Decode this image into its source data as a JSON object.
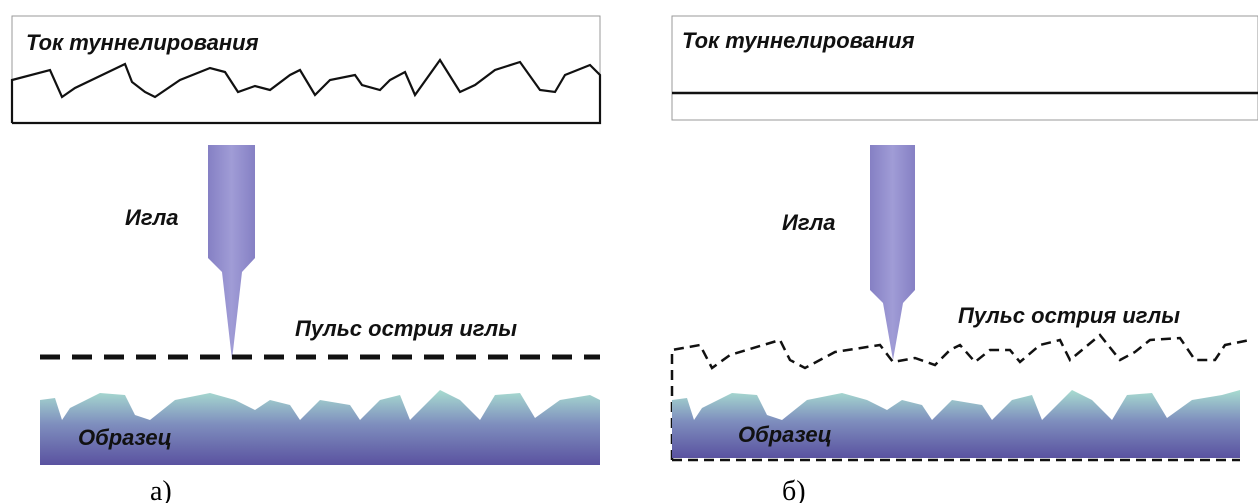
{
  "panels": [
    {
      "current_label": "Ток туннелирования",
      "needle_label": "Игла",
      "tip_pulse_label": "Пульс острия иглы",
      "sample_label": "Образец",
      "caption": "а)"
    },
    {
      "current_label": "Ток туннелирования",
      "needle_label": "Игла",
      "tip_pulse_label": "Пульс острия иглы",
      "sample_label": "Образец",
      "caption": "б)"
    }
  ]
}
